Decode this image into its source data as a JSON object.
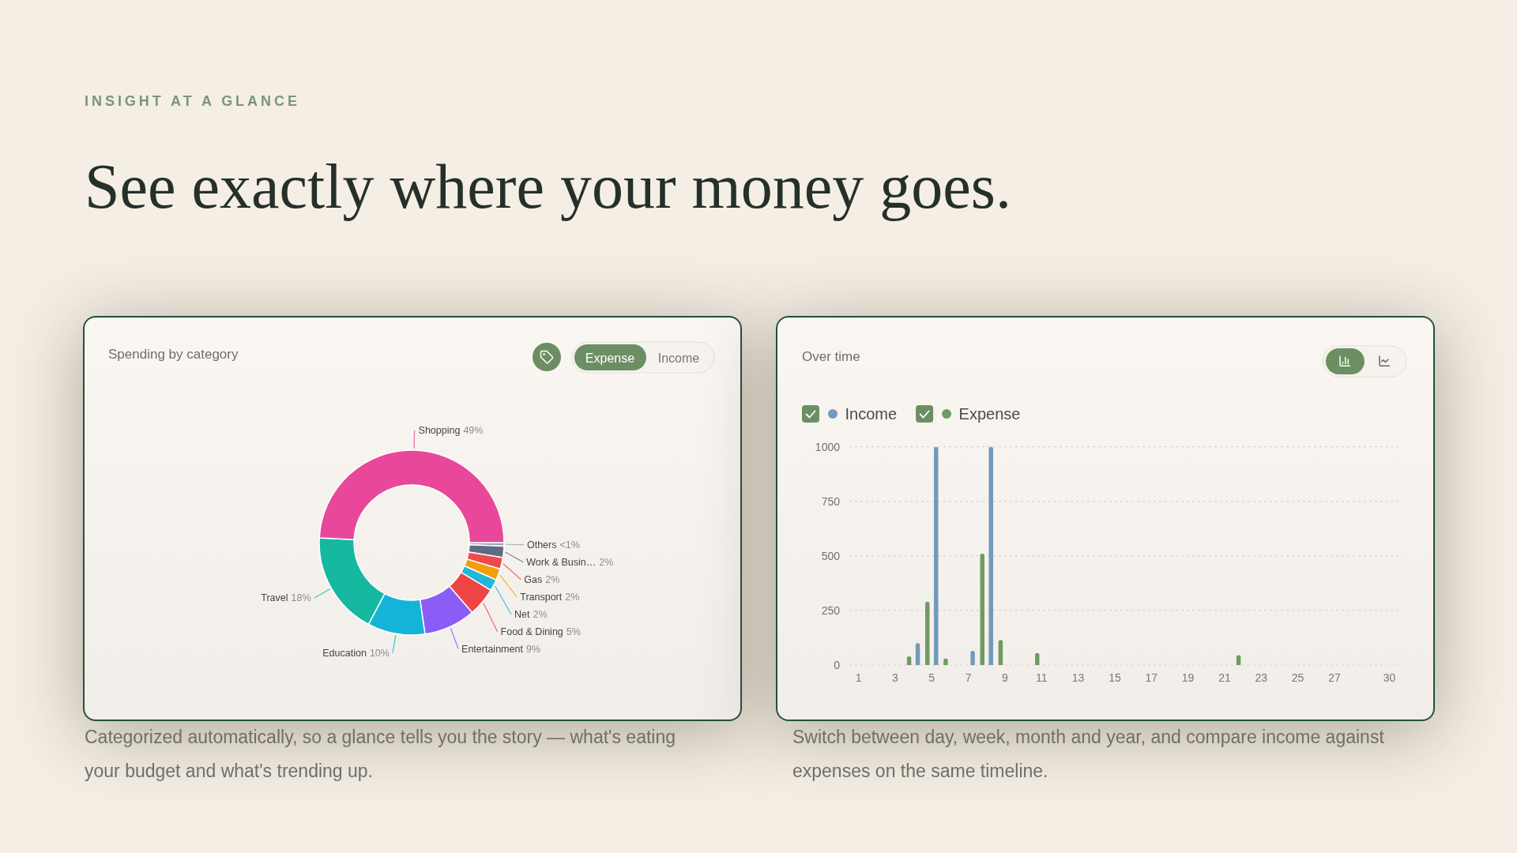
{
  "chart_data": [
    {
      "type": "other",
      "subtitle": "INSIGHT AT A GLANCE",
      "title": "See exactly where your money goes."
    },
    {
      "type": "donut",
      "title": "Spending by category",
      "categories": [
        "Others",
        "Work & Busin…",
        "Gas",
        "Transport",
        "Net",
        "Food & Dining",
        "Entertainment",
        "Education",
        "Travel",
        "Shopping"
      ],
      "values": [
        0.6,
        2,
        2,
        2,
        2,
        5,
        9,
        10,
        18,
        49
      ],
      "value_labels": [
        "<1%",
        "2%",
        "2%",
        "2%",
        "2%",
        "5%",
        "9%",
        "10%",
        "18%",
        "49%"
      ],
      "colors": [
        "#9ba4b6",
        "#5f6b80",
        "#ef4b4b",
        "#f59e0b",
        "#22b7d8",
        "#ef4444",
        "#8b5cf6",
        "#14b4d8",
        "#16b8a0",
        "#e9489a"
      ],
      "annotations": [
        "Expense",
        "Income",
        "Categorized automatically, so a glance tells you the story — what's eating your budget and what's trending up."
      ]
    },
    {
      "type": "bar",
      "title": "Over time",
      "series": [
        {
          "name": "Income",
          "color": "#7399bb",
          "x": [
            4,
            5,
            7,
            8
          ],
          "values": [
            100,
            1000,
            65,
            1000
          ]
        },
        {
          "name": "Expense",
          "color": "#6f9b63",
          "x": [
            4,
            5,
            6,
            8,
            9,
            11,
            22
          ],
          "values": [
            40,
            290,
            30,
            510,
            115,
            55,
            45
          ]
        }
      ],
      "xlim": [
        0.5,
        30.5
      ],
      "xticks": [
        1,
        3,
        5,
        7,
        9,
        11,
        13,
        15,
        17,
        19,
        21,
        23,
        25,
        27,
        30
      ],
      "ylim": [
        0,
        1000
      ],
      "yticks": [
        0,
        250,
        500,
        750,
        1000
      ],
      "grid": "y",
      "legend": "top left",
      "annotations": [
        "Switch between day, week, month and year, and compare income against expenses on the same timeline."
      ]
    }
  ]
}
